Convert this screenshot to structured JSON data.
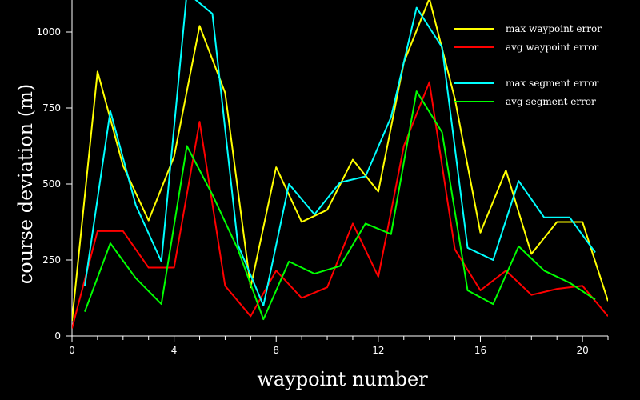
{
  "chart_data": {
    "type": "line",
    "title": "",
    "xlabel": "waypoint number",
    "ylabel": "course deviation (m)",
    "xlim": [
      0,
      21
    ],
    "ylim": [
      0,
      1000
    ],
    "x_ticks": [
      0,
      4,
      8,
      12,
      16,
      20
    ],
    "y_ticks": [
      0,
      250,
      500,
      750,
      1000
    ],
    "grid": false,
    "legend_position": "top-right",
    "background": "#000000",
    "axis_color": "#ffffff",
    "series": [
      {
        "name": "max waypoint error",
        "color": "#ffff00",
        "x": [
          0,
          1,
          2,
          3,
          4,
          5,
          6,
          7,
          8,
          9,
          10,
          11,
          12,
          13,
          14,
          15,
          16,
          17,
          18,
          19,
          20,
          21
        ],
        "y": [
          50,
          870,
          560,
          380,
          590,
          1020,
          800,
          160,
          555,
          375,
          415,
          580,
          475,
          900,
          1110,
          780,
          340,
          545,
          270,
          375,
          375,
          115
        ]
      },
      {
        "name": "avg waypoint error",
        "color": "#ff0000",
        "x": [
          0,
          1,
          2,
          3,
          4,
          5,
          6,
          7,
          8,
          9,
          10,
          11,
          12,
          13,
          14,
          15,
          16,
          17,
          18,
          19,
          20,
          21
        ],
        "y": [
          25,
          345,
          345,
          225,
          225,
          705,
          165,
          65,
          215,
          125,
          160,
          370,
          195,
          625,
          835,
          285,
          150,
          215,
          135,
          155,
          165,
          65
        ]
      },
      {
        "name": "max segment error",
        "color": "#00ffff",
        "x": [
          0.5,
          1.5,
          2.5,
          3.5,
          4.5,
          5.5,
          6.5,
          7.5,
          8.5,
          9.5,
          10.5,
          11.5,
          12.5,
          13.5,
          14.5,
          15.5,
          16.5,
          17.5,
          18.5,
          19.5,
          20.5
        ],
        "y": [
          165,
          740,
          430,
          245,
          1130,
          1060,
          300,
          100,
          500,
          400,
          505,
          525,
          720,
          1080,
          950,
          290,
          250,
          510,
          390,
          390,
          275
        ]
      },
      {
        "name": "avg segment error",
        "color": "#00ff00",
        "x": [
          0.5,
          1.5,
          2.5,
          3.5,
          4.5,
          5.5,
          6.5,
          7.5,
          8.5,
          9.5,
          10.5,
          11.5,
          12.5,
          13.5,
          14.5,
          15.5,
          16.5,
          17.5,
          18.5,
          19.5,
          20.5
        ],
        "y": [
          80,
          305,
          190,
          105,
          625,
          465,
          285,
          55,
          245,
          205,
          230,
          370,
          335,
          805,
          670,
          150,
          105,
          295,
          215,
          175,
          120
        ]
      }
    ]
  }
}
